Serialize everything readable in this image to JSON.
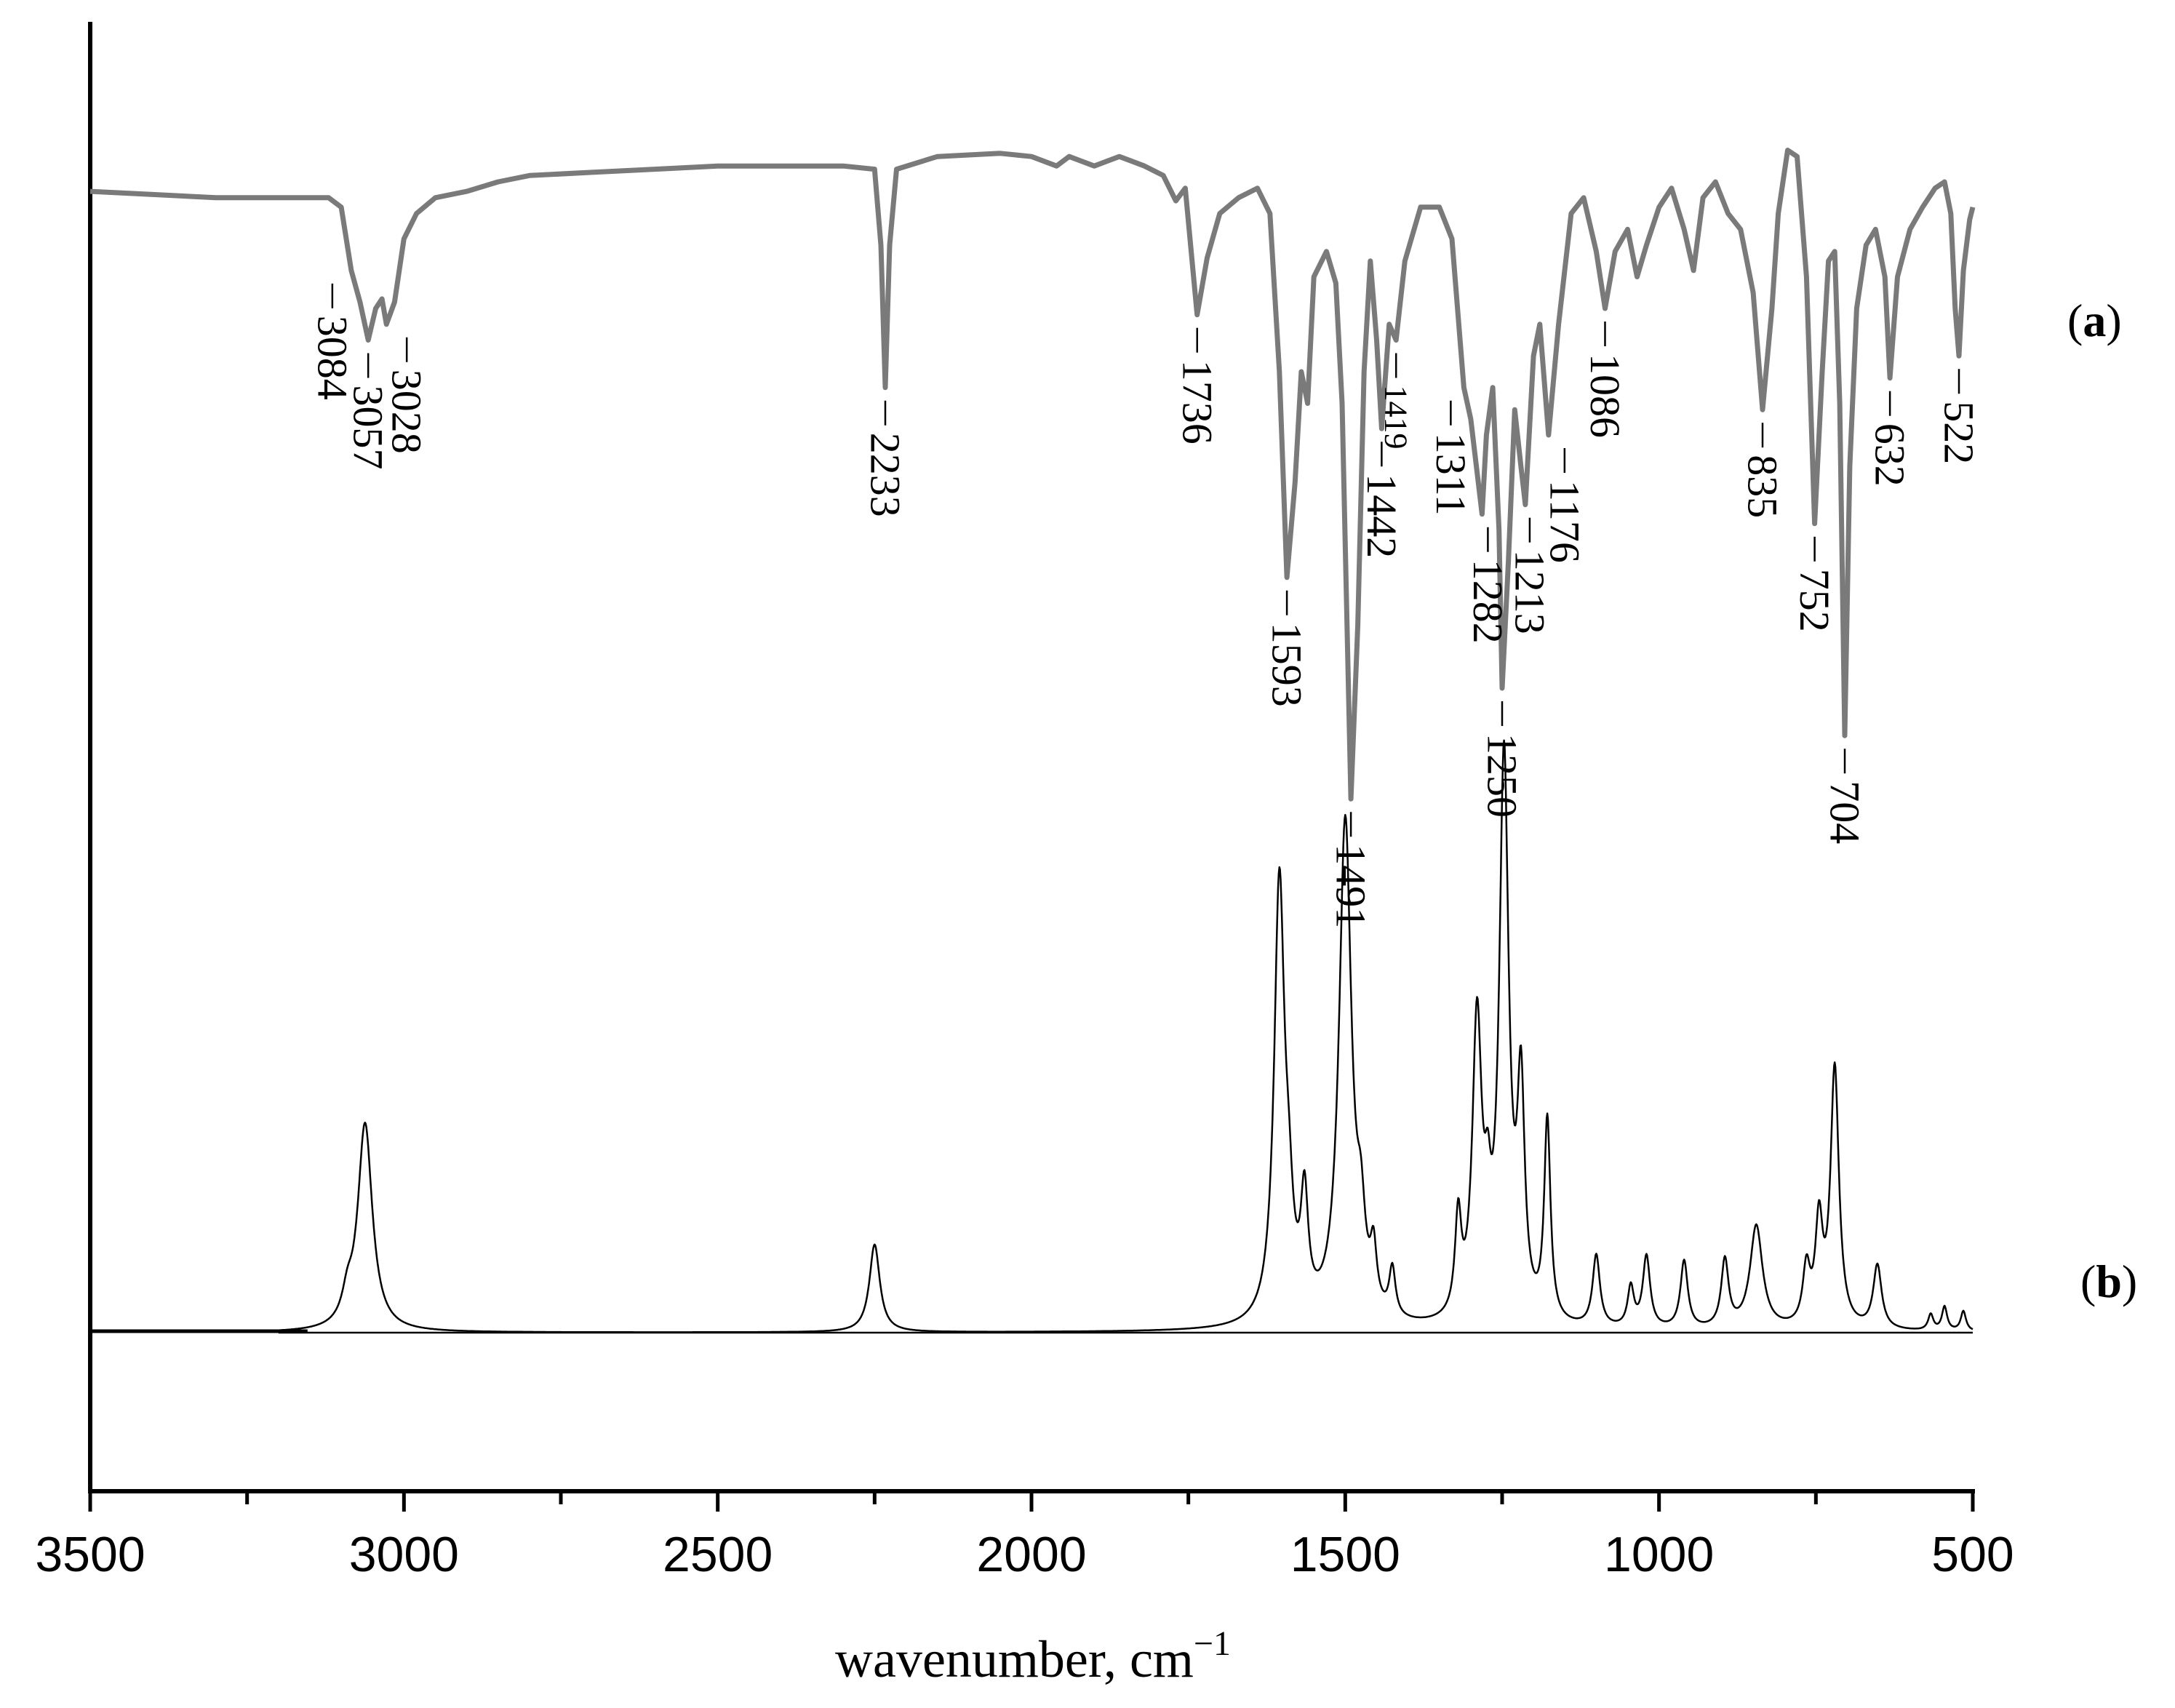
{
  "chart_data": {
    "type": "line",
    "xlabel": "wavenumber, cm",
    "xlabel_superscript": "−1",
    "xlim": [
      3500,
      500
    ],
    "x_ticks": [
      3500,
      3000,
      2500,
      2000,
      1500,
      1000,
      500
    ],
    "grid": false,
    "series": [
      {
        "panel": "(a)",
        "panel_letter": "a",
        "color": "#7a7a7a",
        "orientation": "transmittance",
        "points": [
          [
            3500,
            0.97
          ],
          [
            3400,
            0.96
          ],
          [
            3300,
            0.95
          ],
          [
            3200,
            0.95
          ],
          [
            3120,
            0.95
          ],
          [
            3100,
            0.92
          ],
          [
            3084,
            0.72
          ],
          [
            3070,
            0.62
          ],
          [
            3057,
            0.5
          ],
          [
            3045,
            0.6
          ],
          [
            3035,
            0.63
          ],
          [
            3028,
            0.55
          ],
          [
            3015,
            0.62
          ],
          [
            3000,
            0.82
          ],
          [
            2980,
            0.9
          ],
          [
            2950,
            0.95
          ],
          [
            2900,
            0.97
          ],
          [
            2850,
            1.0
          ],
          [
            2800,
            1.02
          ],
          [
            2700,
            1.03
          ],
          [
            2600,
            1.04
          ],
          [
            2500,
            1.05
          ],
          [
            2400,
            1.05
          ],
          [
            2300,
            1.05
          ],
          [
            2250,
            1.04
          ],
          [
            2240,
            0.8
          ],
          [
            2233,
            0.35
          ],
          [
            2226,
            0.8
          ],
          [
            2215,
            1.04
          ],
          [
            2150,
            1.08
          ],
          [
            2050,
            1.09
          ],
          [
            2000,
            1.08
          ],
          [
            1960,
            1.05
          ],
          [
            1940,
            1.08
          ],
          [
            1900,
            1.05
          ],
          [
            1860,
            1.08
          ],
          [
            1820,
            1.05
          ],
          [
            1790,
            1.02
          ],
          [
            1770,
            0.94
          ],
          [
            1755,
            0.98
          ],
          [
            1736,
            0.58
          ],
          [
            1720,
            0.76
          ],
          [
            1700,
            0.9
          ],
          [
            1670,
            0.95
          ],
          [
            1640,
            0.98
          ],
          [
            1620,
            0.9
          ],
          [
            1605,
            0.4
          ],
          [
            1593,
            -0.25
          ],
          [
            1580,
            0.05
          ],
          [
            1570,
            0.4
          ],
          [
            1560,
            0.3
          ],
          [
            1550,
            0.7
          ],
          [
            1530,
            0.78
          ],
          [
            1515,
            0.68
          ],
          [
            1505,
            0.3
          ],
          [
            1491,
            -0.95
          ],
          [
            1480,
            -0.4
          ],
          [
            1470,
            0.4
          ],
          [
            1460,
            0.75
          ],
          [
            1450,
            0.5
          ],
          [
            1442,
            0.22
          ],
          [
            1430,
            0.55
          ],
          [
            1419,
            0.5
          ],
          [
            1405,
            0.75
          ],
          [
            1380,
            0.92
          ],
          [
            1350,
            0.92
          ],
          [
            1330,
            0.82
          ],
          [
            1311,
            0.35
          ],
          [
            1300,
            0.25
          ],
          [
            1282,
            -0.05
          ],
          [
            1275,
            0.2
          ],
          [
            1265,
            0.35
          ],
          [
            1255,
            -0.1
          ],
          [
            1250,
            -0.6
          ],
          [
            1240,
            -0.2
          ],
          [
            1230,
            0.28
          ],
          [
            1220,
            0.1
          ],
          [
            1213,
            -0.02
          ],
          [
            1200,
            0.45
          ],
          [
            1190,
            0.55
          ],
          [
            1176,
            0.2
          ],
          [
            1160,
            0.55
          ],
          [
            1140,
            0.9
          ],
          [
            1120,
            0.95
          ],
          [
            1100,
            0.78
          ],
          [
            1086,
            0.6
          ],
          [
            1070,
            0.78
          ],
          [
            1050,
            0.85
          ],
          [
            1035,
            0.7
          ],
          [
            1020,
            0.8
          ],
          [
            1000,
            0.92
          ],
          [
            980,
            0.98
          ],
          [
            960,
            0.85
          ],
          [
            945,
            0.72
          ],
          [
            930,
            0.95
          ],
          [
            910,
            1.0
          ],
          [
            890,
            0.9
          ],
          [
            870,
            0.85
          ],
          [
            850,
            0.65
          ],
          [
            835,
            0.28
          ],
          [
            820,
            0.6
          ],
          [
            810,
            0.9
          ],
          [
            795,
            1.1
          ],
          [
            780,
            1.08
          ],
          [
            765,
            0.7
          ],
          [
            752,
            -0.08
          ],
          [
            740,
            0.4
          ],
          [
            730,
            0.75
          ],
          [
            720,
            0.78
          ],
          [
            712,
            0.3
          ],
          [
            704,
            -0.75
          ],
          [
            696,
            0.1
          ],
          [
            685,
            0.6
          ],
          [
            670,
            0.8
          ],
          [
            655,
            0.85
          ],
          [
            640,
            0.7
          ],
          [
            632,
            0.38
          ],
          [
            620,
            0.7
          ],
          [
            600,
            0.85
          ],
          [
            580,
            0.92
          ],
          [
            560,
            0.98
          ],
          [
            545,
            1.0
          ],
          [
            535,
            0.9
          ],
          [
            528,
            0.6
          ],
          [
            522,
            0.45
          ],
          [
            515,
            0.72
          ],
          [
            505,
            0.88
          ],
          [
            500,
            0.92
          ]
        ],
        "peak_labels": [
          {
            "x": 3084,
            "text": "3084"
          },
          {
            "x": 3057,
            "text": "3057"
          },
          {
            "x": 3028,
            "text": "3028"
          },
          {
            "x": 2233,
            "text": "2233"
          },
          {
            "x": 1736,
            "text": "1736"
          },
          {
            "x": 1593,
            "text": "1593"
          },
          {
            "x": 1491,
            "text": "1491"
          },
          {
            "x": 1442,
            "text": "1442"
          },
          {
            "x": 1419,
            "text": "1419"
          },
          {
            "x": 1311,
            "text": "1311"
          },
          {
            "x": 1282,
            "text": "1282"
          },
          {
            "x": 1250,
            "text": "1250"
          },
          {
            "x": 1213,
            "text": "1213"
          },
          {
            "x": 1176,
            "text": "1176"
          },
          {
            "x": 1086,
            "text": "1086"
          },
          {
            "x": 835,
            "text": "835"
          },
          {
            "x": 752,
            "text": "752"
          },
          {
            "x": 704,
            "text": "704"
          },
          {
            "x": 632,
            "text": "632"
          },
          {
            "x": 522,
            "text": "522"
          }
        ]
      },
      {
        "panel": "(b)",
        "panel_letter": "b",
        "color": "#000000",
        "orientation": "intensity",
        "x_start": 3200,
        "peaks": [
          {
            "x": 3062,
            "h": 0.52,
            "w": 14
          },
          {
            "x": 3090,
            "h": 0.06,
            "w": 10
          },
          {
            "x": 2250,
            "h": 0.22,
            "w": 10
          },
          {
            "x": 1605,
            "h": 1.1,
            "w": 10
          },
          {
            "x": 1590,
            "h": 0.18,
            "w": 8
          },
          {
            "x": 1565,
            "h": 0.28,
            "w": 7
          },
          {
            "x": 1500,
            "h": 1.26,
            "w": 12
          },
          {
            "x": 1475,
            "h": 0.18,
            "w": 8
          },
          {
            "x": 1455,
            "h": 0.14,
            "w": 6
          },
          {
            "x": 1425,
            "h": 0.12,
            "w": 6
          },
          {
            "x": 1320,
            "h": 0.24,
            "w": 6
          },
          {
            "x": 1290,
            "h": 0.74,
            "w": 9
          },
          {
            "x": 1273,
            "h": 0.18,
            "w": 6
          },
          {
            "x": 1247,
            "h": 1.4,
            "w": 9
          },
          {
            "x": 1220,
            "h": 0.55,
            "w": 7
          },
          {
            "x": 1178,
            "h": 0.5,
            "w": 6
          },
          {
            "x": 1100,
            "h": 0.18,
            "w": 7
          },
          {
            "x": 1045,
            "h": 0.1,
            "w": 6
          },
          {
            "x": 1020,
            "h": 0.18,
            "w": 7
          },
          {
            "x": 960,
            "h": 0.17,
            "w": 7
          },
          {
            "x": 895,
            "h": 0.17,
            "w": 7
          },
          {
            "x": 845,
            "h": 0.26,
            "w": 12
          },
          {
            "x": 765,
            "h": 0.14,
            "w": 7
          },
          {
            "x": 745,
            "h": 0.25,
            "w": 7
          },
          {
            "x": 720,
            "h": 0.65,
            "w": 8
          },
          {
            "x": 652,
            "h": 0.16,
            "w": 8
          },
          {
            "x": 567,
            "h": 0.04,
            "w": 5
          },
          {
            "x": 545,
            "h": 0.06,
            "w": 5
          },
          {
            "x": 515,
            "h": 0.05,
            "w": 5
          }
        ]
      }
    ]
  }
}
